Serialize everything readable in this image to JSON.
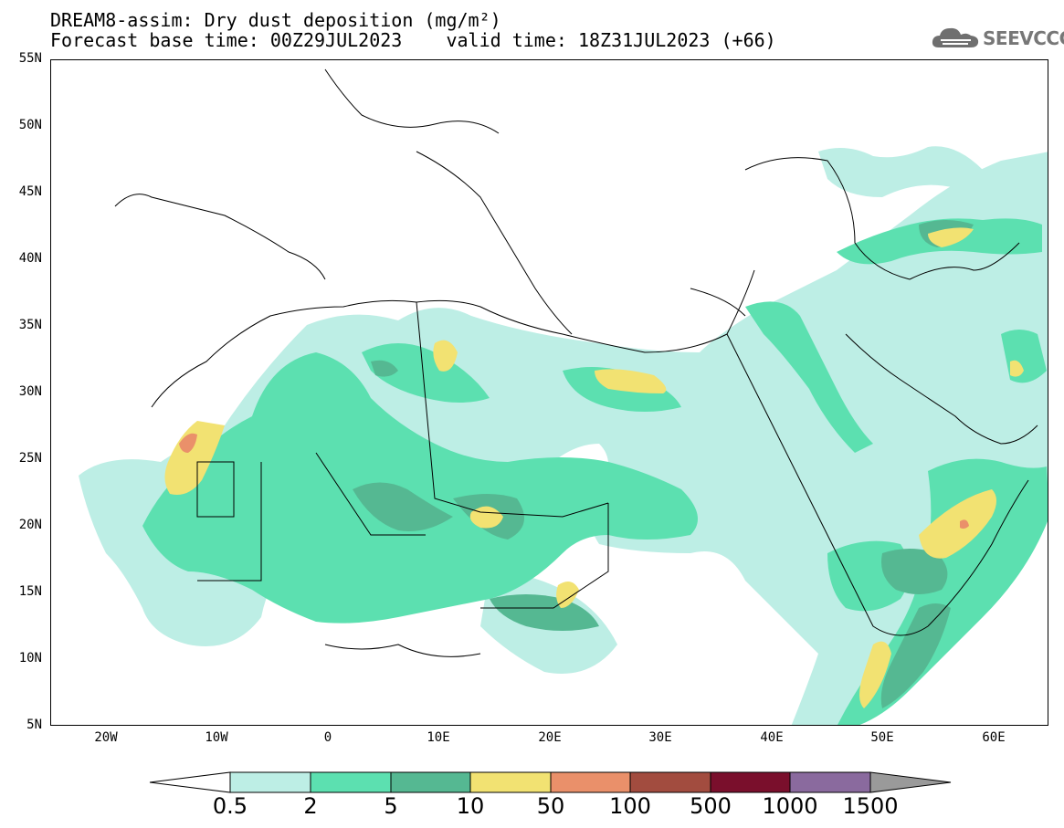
{
  "header": {
    "title_line1": "DREAM8-assim: Dry dust deposition (mg/m²)",
    "title_line2": "Forecast base time: 00Z29JUL2023    valid time: 18Z31JUL2023 (+66)"
  },
  "logo": {
    "text": "SEEVCCC",
    "icon": "cloud-logo-icon"
  },
  "map": {
    "lat_labels": [
      "55N",
      "50N",
      "45N",
      "40N",
      "35N",
      "30N",
      "25N",
      "20N",
      "15N",
      "10N",
      "5N"
    ],
    "lon_labels": [
      "20W",
      "10W",
      "0",
      "10E",
      "20E",
      "30E",
      "40E",
      "50E",
      "60E"
    ],
    "extent": {
      "lon_min": -25,
      "lon_max": 65,
      "lat_min": 5,
      "lat_max": 55
    },
    "coastline_color": "#000000"
  },
  "colorbar": {
    "levels": [
      "0.5",
      "2",
      "5",
      "10",
      "50",
      "100",
      "500",
      "1000",
      "1500"
    ],
    "colors": [
      "#ffffff",
      "#bdeee5",
      "#5ce0b0",
      "#55b892",
      "#f2e272",
      "#ea906a",
      "#a24c3f",
      "#7a0f2c",
      "#8a6a9e",
      "#9a9a9a"
    ]
  }
}
